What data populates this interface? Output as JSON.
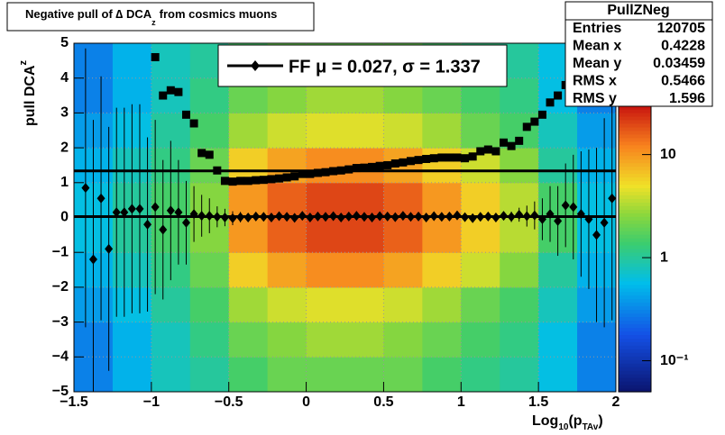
{
  "chart_data": {
    "type": "hist2d",
    "title": "Negative pull of ∆ DCA",
    "title_sub": "z",
    "title_end": "from cosmics muons",
    "y_label": "pull DCA",
    "y_label_sub": "z",
    "x_label": [
      "Log",
      "10",
      "(p",
      "TAv",
      ")"
    ],
    "xlim": [
      -1.5,
      2
    ],
    "ylim": [
      -5,
      5
    ],
    "xticks": [
      {
        "value": -1.5,
        "label": "−1.5"
      },
      {
        "value": -1,
        "label": "−1"
      },
      {
        "value": -0.5,
        "label": "−0.5"
      },
      0,
      0.5,
      1,
      1.5,
      2
    ],
    "yticks": [
      {
        "value": -5,
        "label": "−5"
      },
      {
        "value": -4,
        "label": "−4"
      },
      {
        "value": -3,
        "label": "−3"
      },
      {
        "value": -2,
        "label": "−2"
      },
      {
        "value": -1,
        "label": "−1"
      },
      0,
      1,
      2,
      3,
      4,
      5
    ],
    "grid": true,
    "zlim": [
      0.05,
      30
    ],
    "zlog": true,
    "zticks": [
      {
        "value": 0.1,
        "label": "10⁻¹"
      },
      1,
      10
    ],
    "heatmap": {
      "xbins": [
        -1.5,
        -1.25,
        -1,
        -0.75,
        -0.5,
        -0.25,
        0,
        0.25,
        0.5,
        0.75,
        1,
        1.25,
        1.5,
        1.75,
        2
      ],
      "ybins": [
        -5,
        -4,
        -3,
        -2,
        -1,
        0,
        1,
        2,
        3,
        4,
        5
      ],
      "z": [
        [
          0.3,
          0.5,
          0.8,
          1,
          1.5,
          2,
          2,
          2,
          2,
          1.5,
          1.2,
          1,
          0.6,
          0.3
        ],
        [
          0.3,
          0.5,
          0.8,
          1.2,
          2,
          2.5,
          3,
          3,
          2.5,
          2,
          1.5,
          1.2,
          0.6,
          0.3
        ],
        [
          0.4,
          0.6,
          1,
          1.5,
          3,
          4,
          4.5,
          4.5,
          4,
          3,
          2,
          1.5,
          0.8,
          0.4
        ],
        [
          0.5,
          0.8,
          1.2,
          2,
          6,
          9,
          11,
          11,
          9,
          6,
          4,
          2.5,
          1,
          0.5
        ],
        [
          0.6,
          1,
          1.5,
          2.5,
          10,
          16,
          20,
          20,
          16,
          10,
          6,
          3.5,
          1.5,
          0.6
        ],
        [
          0.6,
          1,
          1.5,
          2.5,
          10,
          16,
          20,
          20,
          16,
          10,
          6,
          3.5,
          1.5,
          0.6
        ],
        [
          0.5,
          0.8,
          1.2,
          2,
          6,
          9,
          11,
          11,
          9,
          6,
          4,
          2.5,
          1,
          0.5
        ],
        [
          0.4,
          0.6,
          1,
          1.5,
          3,
          4,
          4.5,
          4.5,
          4,
          3,
          2,
          1.5,
          0.8,
          0.4
        ],
        [
          0.3,
          0.5,
          0.8,
          1.2,
          2,
          2.5,
          3,
          3,
          2.5,
          2,
          1.5,
          1.2,
          0.6,
          0.3
        ],
        [
          0.3,
          0.5,
          0.8,
          1,
          1.5,
          2,
          2,
          2,
          2,
          1.5,
          1.2,
          1,
          0.6,
          0.3
        ]
      ]
    },
    "series": [
      {
        "marker": "diamond",
        "color": "#000000",
        "x": [
          -1.425,
          -1.375,
          -1.325,
          -1.275,
          -1.225,
          -1.175,
          -1.125,
          -1.075,
          -1.025,
          -0.975,
          -0.925,
          -0.875,
          -0.825,
          -0.775,
          -0.725,
          -0.675,
          -0.625,
          -0.575,
          -0.525,
          -0.475,
          -0.425,
          -0.375,
          -0.325,
          -0.275,
          -0.225,
          -0.175,
          -0.125,
          -0.075,
          -0.025,
          0.025,
          0.075,
          0.125,
          0.175,
          0.225,
          0.275,
          0.325,
          0.375,
          0.425,
          0.475,
          0.525,
          0.575,
          0.625,
          0.675,
          0.725,
          0.775,
          0.825,
          0.875,
          0.925,
          0.975,
          1.025,
          1.075,
          1.125,
          1.175,
          1.225,
          1.275,
          1.325,
          1.375,
          1.425,
          1.475,
          1.525,
          1.575,
          1.625,
          1.675,
          1.725,
          1.775,
          1.825,
          1.875,
          1.925,
          1.975
        ],
        "values": [
          0.85,
          -1.2,
          0.55,
          -0.9,
          0.15,
          0.15,
          0.25,
          0.25,
          -0.2,
          0.3,
          -0.35,
          0.2,
          0.15,
          -0.15,
          0.1,
          0.05,
          0.05,
          0.02,
          0.0,
          -0.02,
          0.01,
          0.0,
          0.03,
          0.02,
          0.0,
          0.04,
          0.02,
          -0.01,
          0.05,
          0.0,
          0.03,
          0.02,
          0.04,
          0.0,
          0.03,
          0.05,
          0.02,
          0.0,
          0.04,
          0.03,
          0.01,
          0.05,
          0.02,
          0.03,
          0.0,
          0.04,
          0.02,
          0.03,
          0.06,
          0.01,
          -0.02,
          0.02,
          0.03,
          0.0,
          0.05,
          0.02,
          0.08,
          0.04,
          0.06,
          -0.05,
          0.1,
          -0.1,
          0.35,
          0.3,
          0.1,
          -0.05,
          -0.5,
          -0.15,
          0.55
        ],
        "errors": [
          4,
          4,
          3.5,
          3.5,
          3,
          3,
          3,
          3,
          2.5,
          2.5,
          2,
          2,
          1.5,
          1.2,
          0.8,
          0.6,
          0.5,
          0.3,
          0.25,
          0.2,
          0.15,
          0.1,
          0.1,
          0.1,
          0.1,
          0.1,
          0.1,
          0.1,
          0.1,
          0.1,
          0.1,
          0.1,
          0.1,
          0.1,
          0.1,
          0.1,
          0.1,
          0.1,
          0.1,
          0.1,
          0.1,
          0.1,
          0.1,
          0.1,
          0.1,
          0.1,
          0.1,
          0.1,
          0.1,
          0.1,
          0.1,
          0.1,
          0.1,
          0.1,
          0.1,
          0.15,
          0.2,
          0.3,
          0.4,
          0.6,
          0.8,
          1,
          1.2,
          1.5,
          1.8,
          2,
          2.5,
          3,
          3.5
        ]
      },
      {
        "marker": "square",
        "color": "#000000",
        "x": [
          -0.975,
          -0.925,
          -0.875,
          -0.825,
          -0.775,
          -0.725,
          -0.675,
          -0.625,
          -0.575,
          -0.525,
          -0.475,
          -0.425,
          -0.375,
          -0.325,
          -0.275,
          -0.225,
          -0.175,
          -0.125,
          -0.075,
          -0.025,
          0.025,
          0.075,
          0.125,
          0.175,
          0.225,
          0.275,
          0.325,
          0.375,
          0.425,
          0.475,
          0.525,
          0.575,
          0.625,
          0.675,
          0.725,
          0.775,
          0.825,
          0.875,
          0.925,
          0.975,
          1.025,
          1.075,
          1.125,
          1.175,
          1.225,
          1.275,
          1.325,
          1.375,
          1.425,
          1.475,
          1.525,
          1.575,
          1.625,
          1.675,
          1.725
        ],
        "values": [
          4.6,
          3.5,
          3.65,
          3.6,
          2.95,
          2.7,
          1.85,
          1.8,
          1.35,
          1.05,
          1.03,
          1.05,
          1.05,
          1.07,
          1.08,
          1.1,
          1.12,
          1.15,
          1.18,
          1.25,
          1.25,
          1.28,
          1.3,
          1.33,
          1.35,
          1.38,
          1.42,
          1.43,
          1.45,
          1.48,
          1.5,
          1.55,
          1.58,
          1.62,
          1.65,
          1.68,
          1.7,
          1.72,
          1.72,
          1.72,
          1.7,
          1.75,
          1.9,
          1.95,
          1.9,
          2.15,
          2.05,
          2.2,
          2.6,
          2.75,
          2.95,
          3.3,
          3.5,
          3.8,
          3.85
        ]
      }
    ],
    "fit": {
      "mu": 0.027,
      "sigma": 1.337
    },
    "legend": "FF μ =  0.027, σ =   1.337",
    "stats": {
      "title": "PullZNeg",
      "rows": [
        [
          "Entries",
          120705
        ],
        [
          "Mean x",
          0.4228
        ],
        [
          "Mean y",
          0.03459
        ],
        [
          "RMS x",
          0.5466
        ],
        [
          "RMS y",
          1.596
        ]
      ]
    }
  }
}
